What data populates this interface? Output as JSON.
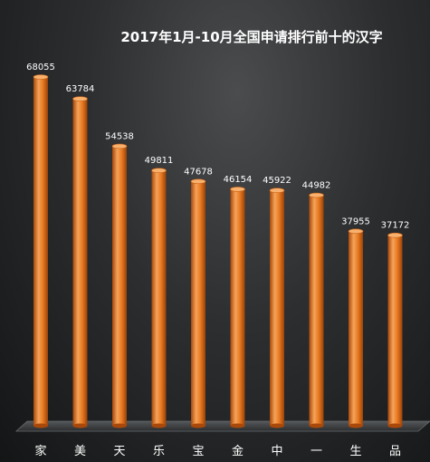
{
  "chart_data": {
    "type": "bar",
    "title": "2017年1月-10月全国申请排行前十的汉字",
    "xlabel": "",
    "ylabel": "",
    "categories": [
      "家",
      "美",
      "天",
      "乐",
      "宝",
      "金",
      "中",
      "一",
      "生",
      "品"
    ],
    "values": [
      68055,
      63784,
      54538,
      49811,
      47678,
      46154,
      45922,
      44982,
      37955,
      37172
    ],
    "ylim": [
      0,
      70000
    ],
    "grid": false,
    "legend": "none",
    "colors": {
      "bar": "#e87a22",
      "bar_light": "#f5a35a",
      "bar_dark": "#a8480a",
      "label": "#ffffff"
    }
  }
}
